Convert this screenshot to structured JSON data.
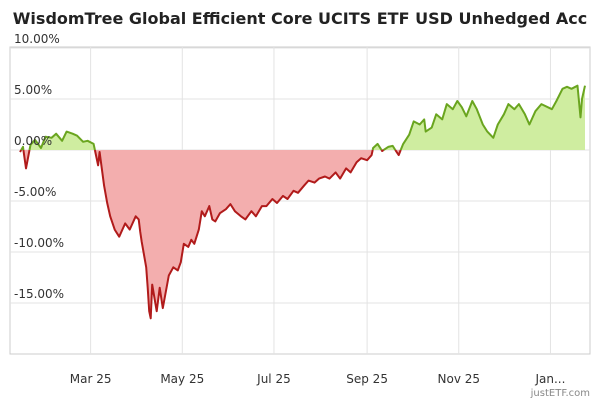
{
  "chart_data": {
    "type": "area",
    "title": "WisdomTree Global Efficient Core UCITS ETF USD Unhedged Acc",
    "xlabel": "",
    "ylabel": "",
    "x_tick_labels": [
      "Mar 25",
      "May 25",
      "Jul 25",
      "Sep 25",
      "Nov 25",
      "Jan..."
    ],
    "y_tick_labels": [
      "10.00%",
      "5.00%",
      "0.00%",
      "-5.00%",
      "-10.00%",
      "-15.00%"
    ],
    "y_ticks": [
      10,
      5,
      0,
      -5,
      -10,
      -15
    ],
    "ylim": [
      -20,
      10
    ],
    "grid": true,
    "positive_fill": "#cfeda0",
    "positive_line": "#6aa51f",
    "negative_fill": "#f3aeae",
    "negative_line": "#b11b1b",
    "watermark": "justETF.com",
    "series": [
      {
        "values": [
          [
            "2025-01-13",
            -0.2
          ],
          [
            "2025-01-15",
            0.3
          ],
          [
            "2025-01-17",
            -1.8
          ],
          [
            "2025-01-20",
            0.5
          ],
          [
            "2025-01-23",
            1.0
          ],
          [
            "2025-01-27",
            0.2
          ],
          [
            "2025-01-30",
            1.3
          ],
          [
            "2025-02-03",
            1.2
          ],
          [
            "2025-02-06",
            1.6
          ],
          [
            "2025-02-10",
            0.9
          ],
          [
            "2025-02-13",
            1.8
          ],
          [
            "2025-02-17",
            1.6
          ],
          [
            "2025-02-20",
            1.4
          ],
          [
            "2025-02-24",
            0.8
          ],
          [
            "2025-02-27",
            0.9
          ],
          [
            "2025-03-03",
            0.6
          ],
          [
            "2025-03-06",
            -1.5
          ],
          [
            "2025-03-07",
            -0.2
          ],
          [
            "2025-03-10",
            -3.5
          ],
          [
            "2025-03-12",
            -5.2
          ],
          [
            "2025-03-14",
            -6.5
          ],
          [
            "2025-03-17",
            -7.8
          ],
          [
            "2025-03-20",
            -8.5
          ],
          [
            "2025-03-24",
            -7.2
          ],
          [
            "2025-03-27",
            -7.8
          ],
          [
            "2025-03-31",
            -6.5
          ],
          [
            "2025-04-02",
            -6.8
          ],
          [
            "2025-04-03",
            -8.0
          ],
          [
            "2025-04-04",
            -9.0
          ],
          [
            "2025-04-07",
            -11.5
          ],
          [
            "2025-04-08",
            -13.5
          ],
          [
            "2025-04-09",
            -15.8
          ],
          [
            "2025-04-10",
            -16.5
          ],
          [
            "2025-04-11",
            -13.2
          ],
          [
            "2025-04-14",
            -15.8
          ],
          [
            "2025-04-16",
            -13.5
          ],
          [
            "2025-04-18",
            -15.5
          ],
          [
            "2025-04-22",
            -12.3
          ],
          [
            "2025-04-25",
            -11.5
          ],
          [
            "2025-04-28",
            -11.8
          ],
          [
            "2025-04-30",
            -11.0
          ],
          [
            "2025-05-02",
            -9.2
          ],
          [
            "2025-05-05",
            -9.5
          ],
          [
            "2025-05-07",
            -8.8
          ],
          [
            "2025-05-09",
            -9.2
          ],
          [
            "2025-05-12",
            -7.8
          ],
          [
            "2025-05-14",
            -6.0
          ],
          [
            "2025-05-16",
            -6.5
          ],
          [
            "2025-05-19",
            -5.5
          ],
          [
            "2025-05-21",
            -6.8
          ],
          [
            "2025-05-23",
            -7.0
          ],
          [
            "2025-05-26",
            -6.2
          ],
          [
            "2025-05-28",
            -6.0
          ],
          [
            "2025-05-30",
            -5.8
          ],
          [
            "2025-06-02",
            -5.3
          ],
          [
            "2025-06-05",
            -6.0
          ],
          [
            "2025-06-09",
            -6.5
          ],
          [
            "2025-06-12",
            -6.8
          ],
          [
            "2025-06-16",
            -6.0
          ],
          [
            "2025-06-19",
            -6.5
          ],
          [
            "2025-06-23",
            -5.5
          ],
          [
            "2025-06-26",
            -5.5
          ],
          [
            "2025-06-30",
            -4.8
          ],
          [
            "2025-07-03",
            -5.2
          ],
          [
            "2025-07-07",
            -4.5
          ],
          [
            "2025-07-10",
            -4.8
          ],
          [
            "2025-07-14",
            -4.0
          ],
          [
            "2025-07-17",
            -4.2
          ],
          [
            "2025-07-21",
            -3.5
          ],
          [
            "2025-07-24",
            -3.0
          ],
          [
            "2025-07-28",
            -3.2
          ],
          [
            "2025-07-31",
            -2.8
          ],
          [
            "2025-08-04",
            -2.6
          ],
          [
            "2025-08-07",
            -2.8
          ],
          [
            "2025-08-11",
            -2.2
          ],
          [
            "2025-08-14",
            -2.8
          ],
          [
            "2025-08-18",
            -1.8
          ],
          [
            "2025-08-21",
            -2.2
          ],
          [
            "2025-08-25",
            -1.2
          ],
          [
            "2025-08-28",
            -0.8
          ],
          [
            "2025-09-01",
            -1.0
          ],
          [
            "2025-09-04",
            -0.5
          ],
          [
            "2025-09-05",
            0.2
          ],
          [
            "2025-09-08",
            0.6
          ],
          [
            "2025-09-11",
            -0.1
          ],
          [
            "2025-09-15",
            0.3
          ],
          [
            "2025-09-18",
            0.4
          ],
          [
            "2025-09-22",
            -0.5
          ],
          [
            "2025-09-25",
            0.6
          ],
          [
            "2025-09-29",
            1.5
          ],
          [
            "2025-10-02",
            2.8
          ],
          [
            "2025-10-06",
            2.5
          ],
          [
            "2025-10-09",
            3.0
          ],
          [
            "2025-10-10",
            1.8
          ],
          [
            "2025-10-14",
            2.2
          ],
          [
            "2025-10-17",
            3.5
          ],
          [
            "2025-10-21",
            3.0
          ],
          [
            "2025-10-24",
            4.5
          ],
          [
            "2025-10-28",
            4.0
          ],
          [
            "2025-10-31",
            4.8
          ],
          [
            "2025-11-03",
            4.2
          ],
          [
            "2025-11-06",
            3.3
          ],
          [
            "2025-11-10",
            4.8
          ],
          [
            "2025-11-13",
            4.0
          ],
          [
            "2025-11-17",
            2.5
          ],
          [
            "2025-11-20",
            1.8
          ],
          [
            "2025-11-24",
            1.2
          ],
          [
            "2025-11-27",
            2.5
          ],
          [
            "2025-12-01",
            3.5
          ],
          [
            "2025-12-04",
            4.5
          ],
          [
            "2025-12-08",
            4.0
          ],
          [
            "2025-12-11",
            4.5
          ],
          [
            "2025-12-15",
            3.5
          ],
          [
            "2025-12-18",
            2.5
          ],
          [
            "2025-12-22",
            3.8
          ],
          [
            "2025-12-26",
            4.5
          ],
          [
            "2026-01-02",
            4.0
          ],
          [
            "2026-01-05",
            4.8
          ],
          [
            "2026-01-09",
            6.0
          ],
          [
            "2026-01-12",
            6.2
          ],
          [
            "2026-01-15",
            6.0
          ],
          [
            "2026-01-19",
            6.3
          ],
          [
            "2026-01-21",
            3.2
          ],
          [
            "2026-01-22",
            5.0
          ],
          [
            "2026-01-24",
            6.3
          ]
        ]
      }
    ]
  }
}
